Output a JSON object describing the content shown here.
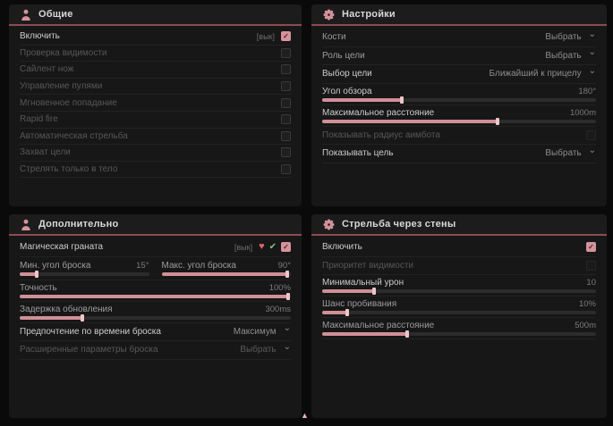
{
  "icons": {
    "check": "✓",
    "chevron": "⌄",
    "heart": "♥",
    "check_small": "✔",
    "cursor": "▲"
  },
  "panels": {
    "general": {
      "title": "Общие",
      "rows": [
        {
          "label": "Включить",
          "hint": "[вык]",
          "checked": true
        },
        {
          "label": "Проверка видимости",
          "checked": false
        },
        {
          "label": "Сайлент нож",
          "checked": false
        },
        {
          "label": "Управление пулями",
          "checked": false
        },
        {
          "label": "Мгновенное попадание",
          "checked": false
        },
        {
          "label": "Rapid fire",
          "checked": false
        },
        {
          "label": "Автоматическая стрельба",
          "checked": false
        },
        {
          "label": "Захват цели",
          "checked": false
        },
        {
          "label": "Стрелять только в тело",
          "checked": false
        }
      ]
    },
    "settings": {
      "title": "Настройки",
      "rows": [
        {
          "label": "Кости",
          "value": "Выбрать"
        },
        {
          "label": "Роль цели",
          "value": "Выбрать"
        },
        {
          "label": "Выбор цели",
          "value": "Ближайший к прицелу"
        },
        {
          "label": "Угол обзора",
          "value": "180°",
          "fill": 29
        },
        {
          "label": "Максимальное расстояние",
          "value": "1000m",
          "fill": 64
        },
        {
          "label": "Показывать радиус аимбота",
          "checked": false
        },
        {
          "label": "Показывать цель",
          "value": "Выбрать"
        }
      ]
    },
    "additional": {
      "title": "Дополнительно",
      "rows": [
        {
          "label": "Магическая граната",
          "hint": "[вык]",
          "checked": true
        },
        {
          "label": "Мин. угол броска",
          "value": "15°",
          "fill": 13
        },
        {
          "label": "Макс. угол броска",
          "value": "90°",
          "fill": 97
        },
        {
          "label": "Точность",
          "value": "100%",
          "fill": 99
        },
        {
          "label": "Задержка обновления",
          "value": "300ms",
          "fill": 23
        },
        {
          "label": "Предпочтение по времени броска",
          "value": "Максимум"
        },
        {
          "label": "Расширенные параметры броска",
          "value": "Выбрать"
        }
      ]
    },
    "wallbang": {
      "title": "Стрельба через стены",
      "rows": [
        {
          "label": "Включить",
          "checked": true
        },
        {
          "label": "Приоритет видимости",
          "checked": false
        },
        {
          "label": "Минимальный урон",
          "value": "10",
          "fill": 19
        },
        {
          "label": "Шанс пробивания",
          "value": "10%",
          "fill": 9
        },
        {
          "label": "Максимальное расстояние",
          "value": "500m",
          "fill": 31
        }
      ]
    }
  }
}
